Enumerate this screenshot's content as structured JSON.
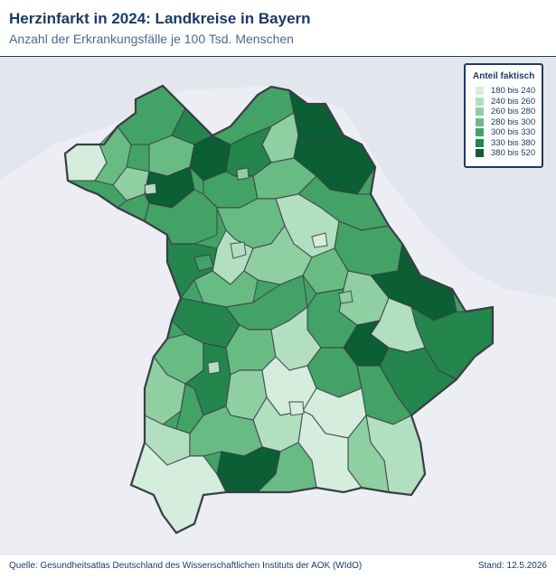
{
  "header": {
    "title": "Herzinfarkt in 2024: Landkreise in Bayern",
    "subtitle": "Anzahl der Erkrankungsfälle je 100 Tsd. Menschen"
  },
  "legend": {
    "title": "Anteil faktisch",
    "items": [
      {
        "label": "180 bis 240",
        "color": "#d4eddc"
      },
      {
        "label": "240 bis 260",
        "color": "#b3dfc1"
      },
      {
        "label": "260 bis 280",
        "color": "#8fcfa2"
      },
      {
        "label": "280 bis 300",
        "color": "#69bb84"
      },
      {
        "label": "300 bis 330",
        "color": "#43a266"
      },
      {
        "label": "330 bis 380",
        "color": "#24854d"
      },
      {
        "label": "380 bis 520",
        "color": "#0c5e34"
      }
    ]
  },
  "map": {
    "region": "Bayern",
    "border_color": "#3a3f46",
    "background_color": "#eceef3"
  },
  "footer": {
    "source": "Quelle: Gesundheitsatlas Deutschland des Wissenschaftlichen Instituts der AOK (WIdO)",
    "date": "Stand: 12.5.2026"
  }
}
